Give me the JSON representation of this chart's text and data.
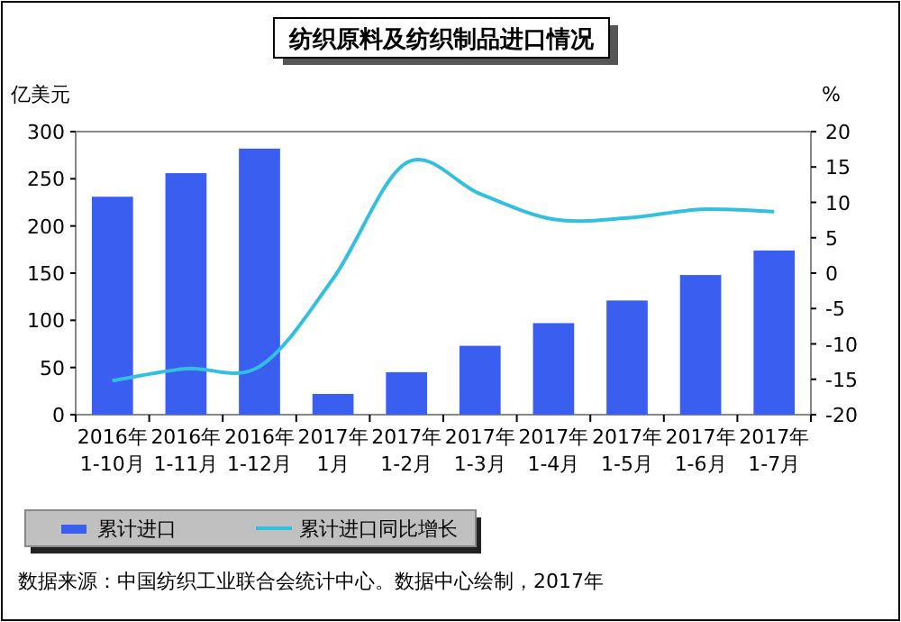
{
  "chart_data": {
    "type": "bar",
    "title": "纺织原料及纺织制品进口情况",
    "ylabel": "亿美元",
    "y2label": "%",
    "categories": [
      "2016年 1-10月",
      "2016年 1-11月",
      "2016年 1-12月",
      "2017年 1月",
      "2017年 1-2月",
      "2017年 1-3月",
      "2017年 1-4月",
      "2017年 1-5月",
      "2017年 1-6月",
      "2017年 1-7月"
    ],
    "series": [
      {
        "name": "累计进口",
        "color": "#3a5ef0",
        "values": [
          231,
          256,
          282,
          22,
          45,
          73,
          97,
          121,
          148,
          174
        ]
      },
      {
        "name": "累计进口同比增长",
        "type": "line",
        "axis": "y2",
        "color": "#33c0e0",
        "values": [
          -15.2,
          -13.5,
          -13.2,
          -0.8,
          15.6,
          11.2,
          7.6,
          7.8,
          9,
          8.7
        ]
      }
    ],
    "ylim": [
      0,
      300
    ],
    "yticks": [
      0,
      50,
      100,
      150,
      200,
      250,
      300
    ],
    "y2lim": [
      -20,
      20
    ],
    "y2ticks": [
      -20,
      -15,
      -10,
      -5,
      0,
      5,
      10,
      15,
      20
    ],
    "legend": "bottom",
    "annotations": [
      "数据来源：中国纺织工业联合会统计中心。数据中心绘制，2017年"
    ]
  }
}
